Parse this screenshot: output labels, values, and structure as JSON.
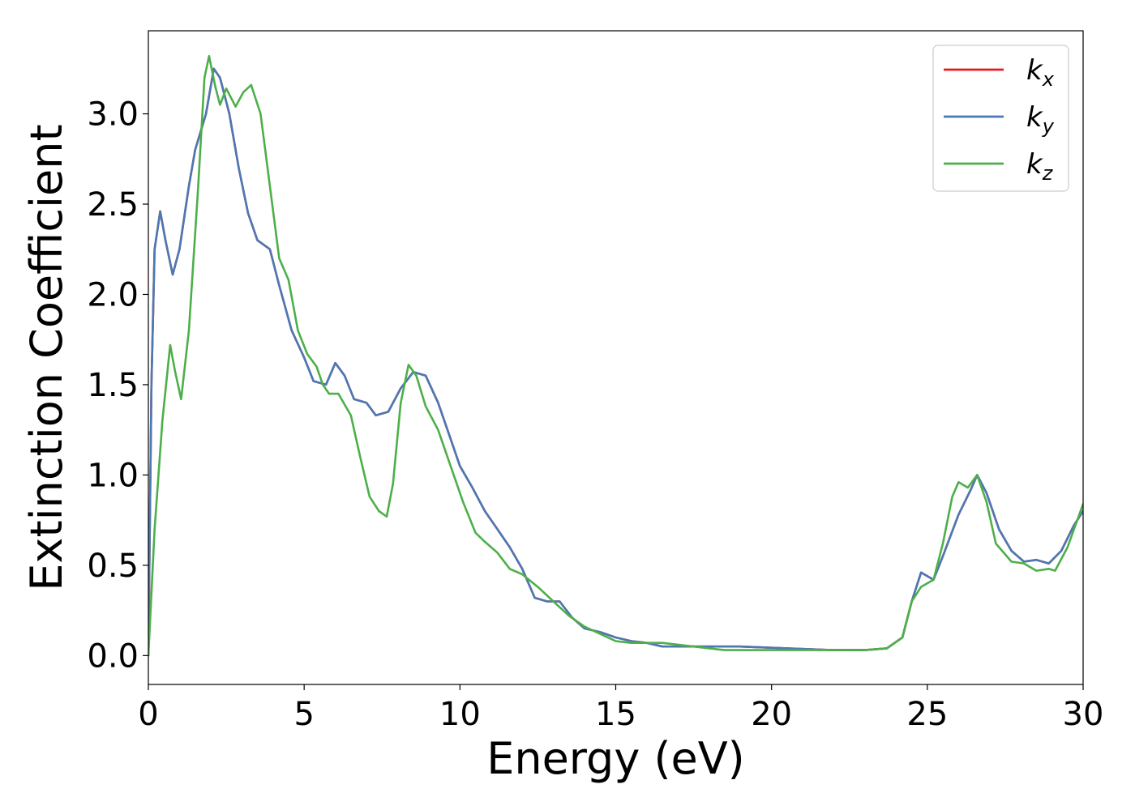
{
  "chart_data": {
    "type": "line",
    "xlabel": "Energy (eV)",
    "ylabel": "Extinction Coefficient",
    "xlim": [
      0,
      30
    ],
    "ylim": [
      -0.16,
      3.46
    ],
    "xticks": [
      0,
      5,
      10,
      15,
      20,
      25,
      30
    ],
    "xtick_labels": [
      "0",
      "5",
      "10",
      "15",
      "20",
      "25",
      "30"
    ],
    "yticks": [
      0.0,
      0.5,
      1.0,
      1.5,
      2.0,
      2.5,
      3.0
    ],
    "ytick_labels": [
      "0.0",
      "0.5",
      "1.0",
      "1.5",
      "2.0",
      "2.5",
      "3.0"
    ],
    "grid": false,
    "legend_position": "top-right",
    "series": [
      {
        "name": "k",
        "subscript": "x",
        "color": "#e41a1c",
        "points": [
          [
            0,
            0
          ],
          [
            0.1,
            1.5
          ],
          [
            0.2,
            2.25
          ],
          [
            0.38,
            2.46
          ],
          [
            0.55,
            2.3
          ],
          [
            0.78,
            2.11
          ],
          [
            1.0,
            2.25
          ],
          [
            1.3,
            2.6
          ],
          [
            1.5,
            2.8
          ],
          [
            1.85,
            3.0
          ],
          [
            2.1,
            3.25
          ],
          [
            2.3,
            3.2
          ],
          [
            2.6,
            3.0
          ],
          [
            2.9,
            2.7
          ],
          [
            3.2,
            2.45
          ],
          [
            3.5,
            2.3
          ],
          [
            3.9,
            2.25
          ],
          [
            4.2,
            2.05
          ],
          [
            4.6,
            1.8
          ],
          [
            5.0,
            1.65
          ],
          [
            5.3,
            1.52
          ],
          [
            5.7,
            1.5
          ],
          [
            6.0,
            1.62
          ],
          [
            6.3,
            1.55
          ],
          [
            6.6,
            1.42
          ],
          [
            7.0,
            1.4
          ],
          [
            7.3,
            1.33
          ],
          [
            7.7,
            1.35
          ],
          [
            8.1,
            1.48
          ],
          [
            8.5,
            1.57
          ],
          [
            8.9,
            1.55
          ],
          [
            9.3,
            1.4
          ],
          [
            9.7,
            1.2
          ],
          [
            10.0,
            1.05
          ],
          [
            10.4,
            0.93
          ],
          [
            10.8,
            0.8
          ],
          [
            11.2,
            0.7
          ],
          [
            11.6,
            0.6
          ],
          [
            12.0,
            0.48
          ],
          [
            12.4,
            0.32
          ],
          [
            12.8,
            0.3
          ],
          [
            13.2,
            0.3
          ],
          [
            13.6,
            0.21
          ],
          [
            14.0,
            0.15
          ],
          [
            14.5,
            0.13
          ],
          [
            15.0,
            0.1
          ],
          [
            15.5,
            0.08
          ],
          [
            16.0,
            0.07
          ],
          [
            16.5,
            0.05
          ],
          [
            17.5,
            0.05
          ],
          [
            19.0,
            0.05
          ],
          [
            20.5,
            0.04
          ],
          [
            22.0,
            0.03
          ],
          [
            23.0,
            0.03
          ],
          [
            23.7,
            0.04
          ],
          [
            24.2,
            0.1
          ],
          [
            24.5,
            0.3
          ],
          [
            24.8,
            0.46
          ],
          [
            25.2,
            0.42
          ],
          [
            25.5,
            0.55
          ],
          [
            26.0,
            0.78
          ],
          [
            26.4,
            0.92
          ],
          [
            26.6,
            1.0
          ],
          [
            26.9,
            0.9
          ],
          [
            27.3,
            0.7
          ],
          [
            27.7,
            0.58
          ],
          [
            28.1,
            0.52
          ],
          [
            28.5,
            0.53
          ],
          [
            28.9,
            0.51
          ],
          [
            29.3,
            0.58
          ],
          [
            29.7,
            0.72
          ],
          [
            30.0,
            0.8
          ]
        ]
      },
      {
        "name": "k",
        "subscript": "y",
        "color": "#4a79b4",
        "points": [
          [
            0,
            0
          ],
          [
            0.1,
            1.5
          ],
          [
            0.2,
            2.25
          ],
          [
            0.38,
            2.46
          ],
          [
            0.55,
            2.3
          ],
          [
            0.78,
            2.11
          ],
          [
            1.0,
            2.25
          ],
          [
            1.3,
            2.6
          ],
          [
            1.5,
            2.8
          ],
          [
            1.85,
            3.0
          ],
          [
            2.1,
            3.25
          ],
          [
            2.3,
            3.2
          ],
          [
            2.6,
            3.0
          ],
          [
            2.9,
            2.7
          ],
          [
            3.2,
            2.45
          ],
          [
            3.5,
            2.3
          ],
          [
            3.9,
            2.25
          ],
          [
            4.2,
            2.05
          ],
          [
            4.6,
            1.8
          ],
          [
            5.0,
            1.65
          ],
          [
            5.3,
            1.52
          ],
          [
            5.7,
            1.5
          ],
          [
            6.0,
            1.62
          ],
          [
            6.3,
            1.55
          ],
          [
            6.6,
            1.42
          ],
          [
            7.0,
            1.4
          ],
          [
            7.3,
            1.33
          ],
          [
            7.7,
            1.35
          ],
          [
            8.1,
            1.48
          ],
          [
            8.5,
            1.57
          ],
          [
            8.9,
            1.55
          ],
          [
            9.3,
            1.4
          ],
          [
            9.7,
            1.2
          ],
          [
            10.0,
            1.05
          ],
          [
            10.4,
            0.93
          ],
          [
            10.8,
            0.8
          ],
          [
            11.2,
            0.7
          ],
          [
            11.6,
            0.6
          ],
          [
            12.0,
            0.48
          ],
          [
            12.4,
            0.32
          ],
          [
            12.8,
            0.3
          ],
          [
            13.2,
            0.3
          ],
          [
            13.6,
            0.21
          ],
          [
            14.0,
            0.15
          ],
          [
            14.5,
            0.13
          ],
          [
            15.0,
            0.1
          ],
          [
            15.5,
            0.08
          ],
          [
            16.0,
            0.07
          ],
          [
            16.5,
            0.05
          ],
          [
            17.5,
            0.05
          ],
          [
            19.0,
            0.05
          ],
          [
            20.5,
            0.04
          ],
          [
            22.0,
            0.03
          ],
          [
            23.0,
            0.03
          ],
          [
            23.7,
            0.04
          ],
          [
            24.2,
            0.1
          ],
          [
            24.5,
            0.3
          ],
          [
            24.8,
            0.46
          ],
          [
            25.2,
            0.42
          ],
          [
            25.5,
            0.55
          ],
          [
            26.0,
            0.78
          ],
          [
            26.4,
            0.92
          ],
          [
            26.6,
            1.0
          ],
          [
            26.9,
            0.9
          ],
          [
            27.3,
            0.7
          ],
          [
            27.7,
            0.58
          ],
          [
            28.1,
            0.52
          ],
          [
            28.5,
            0.53
          ],
          [
            28.9,
            0.51
          ],
          [
            29.3,
            0.58
          ],
          [
            29.7,
            0.72
          ],
          [
            30.0,
            0.8
          ]
        ]
      },
      {
        "name": "k",
        "subscript": "z",
        "color": "#4daf4a",
        "points": [
          [
            0,
            0
          ],
          [
            0.2,
            0.7
          ],
          [
            0.45,
            1.3
          ],
          [
            0.7,
            1.72
          ],
          [
            0.85,
            1.58
          ],
          [
            1.05,
            1.42
          ],
          [
            1.3,
            1.8
          ],
          [
            1.6,
            2.6
          ],
          [
            1.8,
            3.2
          ],
          [
            1.95,
            3.32
          ],
          [
            2.15,
            3.15
          ],
          [
            2.3,
            3.05
          ],
          [
            2.5,
            3.14
          ],
          [
            2.8,
            3.04
          ],
          [
            3.05,
            3.12
          ],
          [
            3.3,
            3.16
          ],
          [
            3.6,
            3.0
          ],
          [
            3.9,
            2.6
          ],
          [
            4.2,
            2.2
          ],
          [
            4.5,
            2.08
          ],
          [
            4.8,
            1.8
          ],
          [
            5.1,
            1.67
          ],
          [
            5.4,
            1.6
          ],
          [
            5.6,
            1.5
          ],
          [
            5.8,
            1.45
          ],
          [
            6.1,
            1.45
          ],
          [
            6.5,
            1.33
          ],
          [
            6.8,
            1.1
          ],
          [
            7.1,
            0.88
          ],
          [
            7.4,
            0.8
          ],
          [
            7.65,
            0.77
          ],
          [
            7.85,
            0.95
          ],
          [
            8.1,
            1.4
          ],
          [
            8.35,
            1.61
          ],
          [
            8.6,
            1.55
          ],
          [
            8.9,
            1.38
          ],
          [
            9.3,
            1.25
          ],
          [
            9.7,
            1.05
          ],
          [
            10.1,
            0.85
          ],
          [
            10.5,
            0.68
          ],
          [
            10.8,
            0.63
          ],
          [
            11.2,
            0.57
          ],
          [
            11.6,
            0.48
          ],
          [
            12.0,
            0.45
          ],
          [
            12.5,
            0.38
          ],
          [
            13.0,
            0.3
          ],
          [
            13.5,
            0.22
          ],
          [
            14.0,
            0.16
          ],
          [
            15.0,
            0.08
          ],
          [
            15.5,
            0.07
          ],
          [
            16.5,
            0.07
          ],
          [
            17.5,
            0.05
          ],
          [
            18.5,
            0.03
          ],
          [
            19.5,
            0.03
          ],
          [
            20.5,
            0.03
          ],
          [
            22.0,
            0.03
          ],
          [
            23.0,
            0.03
          ],
          [
            23.7,
            0.04
          ],
          [
            24.2,
            0.1
          ],
          [
            24.5,
            0.3
          ],
          [
            24.8,
            0.38
          ],
          [
            25.2,
            0.42
          ],
          [
            25.5,
            0.62
          ],
          [
            25.8,
            0.88
          ],
          [
            26.0,
            0.96
          ],
          [
            26.3,
            0.93
          ],
          [
            26.6,
            1.0
          ],
          [
            26.9,
            0.85
          ],
          [
            27.2,
            0.62
          ],
          [
            27.7,
            0.52
          ],
          [
            28.1,
            0.51
          ],
          [
            28.5,
            0.47
          ],
          [
            28.9,
            0.48
          ],
          [
            29.1,
            0.47
          ],
          [
            29.5,
            0.6
          ],
          [
            30.0,
            0.84
          ]
        ]
      }
    ]
  }
}
